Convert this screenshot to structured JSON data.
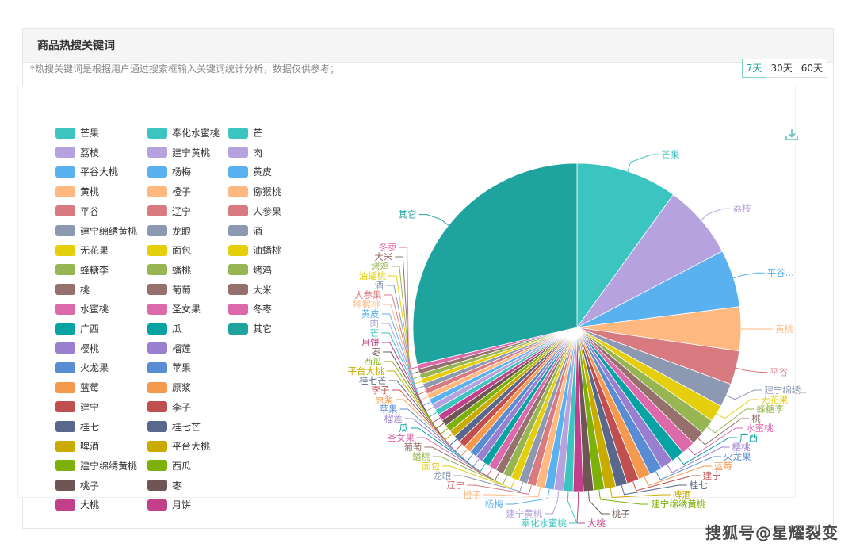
{
  "header": {
    "title": "商品热搜关键词"
  },
  "note": "*热搜关键词是根据用户通过搜索框输入关键词统计分析，数据仅供参考；",
  "range_tabs": [
    {
      "label": "7天",
      "active": true
    },
    {
      "label": "30天",
      "active": false
    },
    {
      "label": "60天",
      "active": false
    }
  ],
  "watermark": "搜狐号@星耀裂变",
  "icons": {
    "download": "download-icon"
  },
  "chart_data": {
    "type": "pie",
    "legend_placement": "left",
    "legend": [
      {
        "name": "芒果",
        "color": "#3cc4c0"
      },
      {
        "name": "荔枝",
        "color": "#b6a2de"
      },
      {
        "name": "平谷大桃",
        "color": "#5ab1ef"
      },
      {
        "name": "黄桃",
        "color": "#ffb980"
      },
      {
        "name": "平谷",
        "color": "#d87a80"
      },
      {
        "name": "建宁绵绣黄桃",
        "color": "#8d98b3"
      },
      {
        "name": "无花果",
        "color": "#e5cf0d"
      },
      {
        "name": "蜂糖李",
        "color": "#97b552"
      },
      {
        "name": "桃",
        "color": "#95706d"
      },
      {
        "name": "水蜜桃",
        "color": "#dc69aa"
      },
      {
        "name": "广西",
        "color": "#07a2a4"
      },
      {
        "name": "樱桃",
        "color": "#9a7fd1"
      },
      {
        "name": "火龙果",
        "color": "#588dd5"
      },
      {
        "name": "蓝莓",
        "color": "#f5994e"
      },
      {
        "name": "建宁",
        "color": "#c05050"
      },
      {
        "name": "桂七",
        "color": "#59678c"
      },
      {
        "name": "啤酒",
        "color": "#c9ab00"
      },
      {
        "name": "建宁绵绣黄桃",
        "color": "#7eb00a"
      },
      {
        "name": "桃子",
        "color": "#6f5553"
      },
      {
        "name": "大桃",
        "color": "#c14089"
      },
      {
        "name": "奉化水蜜桃",
        "color": "#3cc4c0"
      },
      {
        "name": "建宁黄桃",
        "color": "#b6a2de"
      },
      {
        "name": "杨梅",
        "color": "#5ab1ef"
      },
      {
        "name": "橙子",
        "color": "#ffb980"
      },
      {
        "name": "辽宁",
        "color": "#d87a80"
      },
      {
        "name": "龙眼",
        "color": "#8d98b3"
      },
      {
        "name": "面包",
        "color": "#e5cf0d"
      },
      {
        "name": "蟠桃",
        "color": "#97b552"
      },
      {
        "name": "葡萄",
        "color": "#95706d"
      },
      {
        "name": "圣女果",
        "color": "#dc69aa"
      },
      {
        "name": "瓜",
        "color": "#07a2a4"
      },
      {
        "name": "榴莲",
        "color": "#9a7fd1"
      },
      {
        "name": "苹果",
        "color": "#588dd5"
      },
      {
        "name": "原浆",
        "color": "#f5994e"
      },
      {
        "name": "李子",
        "color": "#c05050"
      },
      {
        "name": "桂七芒",
        "color": "#59678c"
      },
      {
        "name": "平台大桃",
        "color": "#c9ab00"
      },
      {
        "name": "西瓜",
        "color": "#7eb00a"
      },
      {
        "name": "枣",
        "color": "#6f5553"
      },
      {
        "name": "月饼",
        "color": "#c14089"
      },
      {
        "name": "芒",
        "color": "#3cc4c0"
      },
      {
        "name": "肉",
        "color": "#b6a2de"
      },
      {
        "name": "黄皮",
        "color": "#5ab1ef"
      },
      {
        "name": "猕猴桃",
        "color": "#ffb980"
      },
      {
        "name": "人参果",
        "color": "#d87a80"
      },
      {
        "name": "酒",
        "color": "#8d98b3"
      },
      {
        "name": "油蟠桃",
        "color": "#e5cf0d"
      },
      {
        "name": "烤鸡",
        "color": "#97b552"
      },
      {
        "name": "大米",
        "color": "#95706d"
      },
      {
        "name": "冬枣",
        "color": "#dc69aa"
      },
      {
        "name": "其它",
        "color": "#1fa39f"
      }
    ],
    "slices": [
      {
        "name": "芒果",
        "value": 3.0,
        "color": "#3cc4c0",
        "label": "芒果"
      },
      {
        "name": "荔枝",
        "value": 2.2,
        "color": "#b6a2de",
        "label": "荔枝"
      },
      {
        "name": "平谷大桃",
        "value": 1.7,
        "color": "#5ab1ef",
        "label": "平谷..."
      },
      {
        "name": "黄桃",
        "value": 1.3,
        "color": "#ffb980",
        "label": "黄桃"
      },
      {
        "name": "平谷",
        "value": 1.0,
        "color": "#d87a80",
        "label": "平谷"
      },
      {
        "name": "建宁绵绣黄桃",
        "value": 0.7,
        "color": "#8d98b3",
        "label": "建宁绵绣..."
      },
      {
        "name": "无花果",
        "value": 0.5,
        "color": "#e5cf0d",
        "label": "无花果"
      },
      {
        "name": "蜂糖李",
        "value": 0.45,
        "color": "#97b552",
        "label": "蜂糖李"
      },
      {
        "name": "桃",
        "value": 0.4,
        "color": "#95706d",
        "label": "桃"
      },
      {
        "name": "水蜜桃",
        "value": 0.4,
        "color": "#dc69aa",
        "label": "水蜜桃"
      },
      {
        "name": "广西",
        "value": 0.4,
        "color": "#07a2a4",
        "label": "广西"
      },
      {
        "name": "樱桃",
        "value": 0.38,
        "color": "#9a7fd1",
        "label": "樱桃"
      },
      {
        "name": "火龙果",
        "value": 0.38,
        "color": "#588dd5",
        "label": "火龙果"
      },
      {
        "name": "蓝莓",
        "value": 0.36,
        "color": "#f5994e",
        "label": "蓝莓"
      },
      {
        "name": "建宁",
        "value": 0.36,
        "color": "#c05050",
        "label": "建宁"
      },
      {
        "name": "桂七",
        "value": 0.34,
        "color": "#59678c",
        "label": "桂七"
      },
      {
        "name": "啤酒",
        "value": 0.34,
        "color": "#c9ab00",
        "label": "啤酒"
      },
      {
        "name": "建宁绵绣黄桃",
        "value": 0.32,
        "color": "#7eb00a",
        "label": "建宁绵绣黄桃"
      },
      {
        "name": "桃子",
        "value": 0.3,
        "color": "#6f5553",
        "label": "桃子"
      },
      {
        "name": "大桃",
        "value": 0.3,
        "color": "#c14089",
        "label": "大桃"
      },
      {
        "name": "奉化水蜜桃",
        "value": 0.28,
        "color": "#3cc4c0",
        "label": "奉化水蜜桃"
      },
      {
        "name": "建宁黄桃",
        "value": 0.28,
        "color": "#b6a2de",
        "label": "建宁黄桃"
      },
      {
        "name": "杨梅",
        "value": 0.27,
        "color": "#5ab1ef",
        "label": "杨梅"
      },
      {
        "name": "橙子",
        "value": 0.27,
        "color": "#ffb980",
        "label": "橙子"
      },
      {
        "name": "辽宁",
        "value": 0.26,
        "color": "#d87a80",
        "label": "辽宁"
      },
      {
        "name": "龙眼",
        "value": 0.26,
        "color": "#8d98b3",
        "label": "龙眼"
      },
      {
        "name": "面包",
        "value": 0.25,
        "color": "#e5cf0d",
        "label": "面包"
      },
      {
        "name": "蟠桃",
        "value": 0.25,
        "color": "#97b552",
        "label": "蟠桃"
      },
      {
        "name": "葡萄",
        "value": 0.24,
        "color": "#95706d",
        "label": "葡萄"
      },
      {
        "name": "圣女果",
        "value": 0.24,
        "color": "#dc69aa",
        "label": "圣女果"
      },
      {
        "name": "瓜",
        "value": 0.23,
        "color": "#07a2a4",
        "label": "瓜"
      },
      {
        "name": "榴莲",
        "value": 0.23,
        "color": "#9a7fd1",
        "label": "榴莲"
      },
      {
        "name": "苹果",
        "value": 0.22,
        "color": "#588dd5",
        "label": "苹果"
      },
      {
        "name": "原浆",
        "value": 0.22,
        "color": "#f5994e",
        "label": "原浆"
      },
      {
        "name": "李子",
        "value": 0.21,
        "color": "#c05050",
        "label": "李子"
      },
      {
        "name": "桂七芒",
        "value": 0.21,
        "color": "#59678c",
        "label": "桂七芒"
      },
      {
        "name": "平台大桃",
        "value": 0.2,
        "color": "#c9ab00",
        "label": "平台大桃"
      },
      {
        "name": "西瓜",
        "value": 0.2,
        "color": "#7eb00a",
        "label": "西瓜"
      },
      {
        "name": "枣",
        "value": 0.19,
        "color": "#6f5553",
        "label": "枣"
      },
      {
        "name": "月饼",
        "value": 0.19,
        "color": "#c14089",
        "label": "月饼"
      },
      {
        "name": "芒",
        "value": 0.18,
        "color": "#3cc4c0",
        "label": "芒"
      },
      {
        "name": "肉",
        "value": 0.18,
        "color": "#b6a2de",
        "label": "肉"
      },
      {
        "name": "黄皮",
        "value": 0.17,
        "color": "#5ab1ef",
        "label": "黄皮"
      },
      {
        "name": "猕猴桃",
        "value": 0.17,
        "color": "#ffb980",
        "label": "猕猴桃"
      },
      {
        "name": "人参果",
        "value": 0.16,
        "color": "#d87a80",
        "label": "人参果"
      },
      {
        "name": "酒",
        "value": 0.16,
        "color": "#8d98b3",
        "label": "酒"
      },
      {
        "name": "油蟠桃",
        "value": 0.15,
        "color": "#e5cf0d",
        "label": "油蟠桃"
      },
      {
        "name": "烤鸡",
        "value": 0.15,
        "color": "#97b552",
        "label": "烤鸡"
      },
      {
        "name": "大米",
        "value": 0.14,
        "color": "#95706d",
        "label": "大米"
      },
      {
        "name": "冬枣",
        "value": 0.14,
        "color": "#dc69aa",
        "label": "冬枣"
      },
      {
        "name": "其它",
        "value": 8.6,
        "color": "#1fa39f",
        "label": "其它"
      }
    ]
  }
}
